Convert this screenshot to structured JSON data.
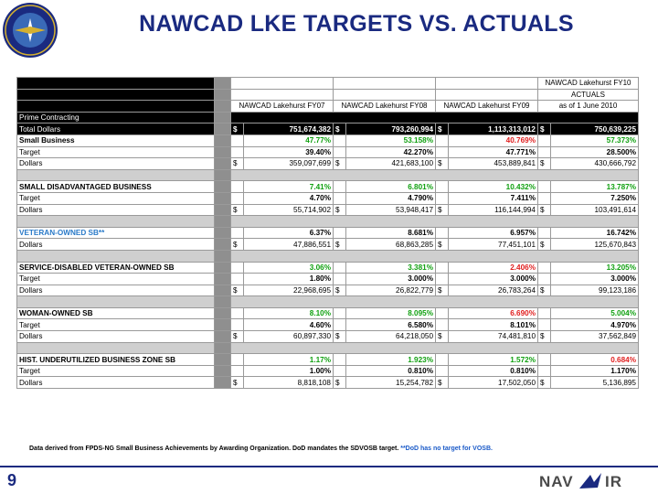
{
  "title": "NAWCAD LKE TARGETS VS. ACTUALS",
  "logo": {
    "text_top": "NAVAL AIR SYSTEMS",
    "text_bottom": "COMMAND"
  },
  "table": {
    "col_headers": {
      "fy10_line1": "NAWCAD Lakehurst FY10",
      "fy10_line2": "ACTUALS",
      "fy07": "NAWCAD Lakehurst FY07",
      "fy08": "NAWCAD Lakehurst FY08",
      "fy09": "NAWCAD Lakehurst FY09",
      "fy10_line3": "as of 1 June 2010"
    },
    "prime_label": "Prime Contracting",
    "total": {
      "label": "Total Dollars",
      "fy07": "751,674,382",
      "fy08": "793,260,994",
      "fy09": "1,113,313,012",
      "fy10": "750,639,225"
    },
    "currency": "$",
    "categories": [
      {
        "name": "Small Business",
        "pct": [
          "47.77%",
          "53.158%",
          "40.769%",
          "57.373%"
        ],
        "pct_colors": [
          "green",
          "green",
          "red",
          "green"
        ],
        "target": [
          "39.40%",
          "42.270%",
          "47.771%",
          "28.500%"
        ],
        "dollars": [
          "359,097,699",
          "421,683,100",
          "453,889,841",
          "430,666,792"
        ]
      },
      {
        "name": "SMALL DISADVANTAGED BUSINESS",
        "pct": [
          "7.41%",
          "6.801%",
          "10.432%",
          "13.787%"
        ],
        "pct_colors": [
          "green",
          "green",
          "green",
          "green"
        ],
        "target": [
          "4.70%",
          "4.790%",
          "7.411%",
          "7.250%"
        ],
        "dollars": [
          "55,714,902",
          "53,948,417",
          "116,144,994",
          "103,491,614"
        ]
      },
      {
        "name": "VETERAN-OWNED SB**",
        "pct": [
          "6.37%",
          "8.681%",
          "6.957%",
          "16.742%"
        ],
        "pct_colors": [
          "black",
          "black",
          "black",
          "black"
        ],
        "target": null,
        "dollars": [
          "47,886,551",
          "68,863,285",
          "77,451,101",
          "125,670,843"
        ]
      },
      {
        "name": "SERVICE-DISABLED VETERAN-OWNED SB",
        "pct": [
          "3.06%",
          "3.381%",
          "2.406%",
          "13.205%"
        ],
        "pct_colors": [
          "green",
          "green",
          "red",
          "green"
        ],
        "target": [
          "1.80%",
          "3.000%",
          "3.000%",
          "3.000%"
        ],
        "dollars": [
          "22,968,695",
          "26,822,779",
          "26,783,264",
          "99,123,186"
        ]
      },
      {
        "name": "WOMAN-OWNED SB",
        "pct": [
          "8.10%",
          "8.095%",
          "6.690%",
          "5.004%"
        ],
        "pct_colors": [
          "green",
          "green",
          "red",
          "green"
        ],
        "target": [
          "4.60%",
          "6.580%",
          "8.101%",
          "4.970%"
        ],
        "dollars": [
          "60,897,330",
          "64,218,050",
          "74,481,810",
          "37,562,849"
        ]
      },
      {
        "name": "HIST. UNDERUTILIZED BUSINESS ZONE SB",
        "pct": [
          "1.17%",
          "1.923%",
          "1.572%",
          "0.684%"
        ],
        "pct_colors": [
          "green",
          "green",
          "green",
          "red"
        ],
        "target": [
          "1.00%",
          "0.810%",
          "0.810%",
          "1.170%"
        ],
        "dollars": [
          "8,818,108",
          "15,254,782",
          "17,502,050",
          "5,136,895"
        ]
      }
    ],
    "target_label": "Target",
    "dollars_label": "Dollars"
  },
  "footnote": {
    "main": "Data derived from FPDS-NG Small Business Achievements by Awarding Organization.  DoD mandates the SDVOSB target.  ",
    "blue": "**DoD has no target for VOSB."
  },
  "page_number": "9",
  "brand": "NAVAIR",
  "colors": {
    "title": "#1a2a80",
    "green": "#10a010",
    "red": "#e02020",
    "blue": "#2a7ac8"
  }
}
